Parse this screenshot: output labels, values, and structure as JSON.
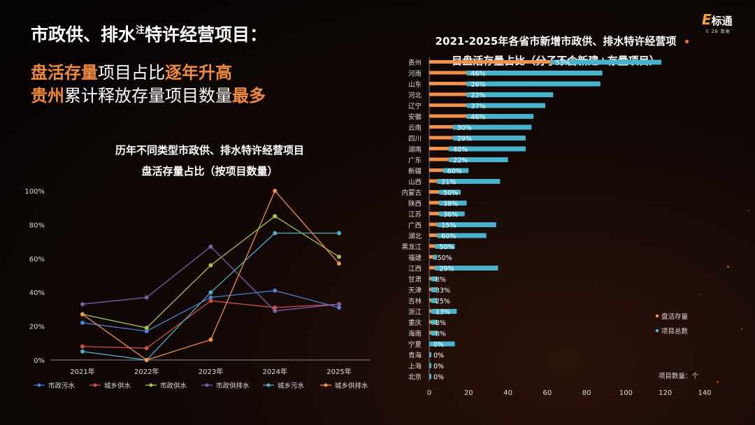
{
  "header": {
    "title": "市政供、排水",
    "title_sup": "注",
    "title_tail": "特许经营项目：",
    "line1_hl1": "盘活存量",
    "line1_plain": "项目占比",
    "line1_hl2": "逐年升高",
    "line2_hl1": "贵州",
    "line2_plain": "累计释放存量项目数量",
    "line2_hl2": "最多"
  },
  "logo": {
    "e": "E",
    "w": "标通",
    "small": "E ZB 数据"
  },
  "chart_data": [
    {
      "type": "line",
      "title": "历年不同类型市政供、排水特许经营项目",
      "subtitle": "盘活存量占比（按项目数量）",
      "x": [
        "2021年",
        "2022年",
        "2023年",
        "2024年",
        "2025年"
      ],
      "ylim": [
        0,
        100
      ],
      "yticks": [
        "0%",
        "20%",
        "40%",
        "60%",
        "80%",
        "100%"
      ],
      "grid": false,
      "legend": "bottom",
      "series": [
        {
          "name": "市政污水",
          "color": "#4f7fd6",
          "values": [
            22,
            17,
            37,
            41,
            31
          ]
        },
        {
          "name": "城乡供水",
          "color": "#c8504a",
          "values": [
            8,
            7,
            35,
            31,
            33
          ]
        },
        {
          "name": "市政供水",
          "color": "#a8c44a",
          "values": [
            27,
            19,
            56,
            85,
            61
          ]
        },
        {
          "name": "市政供排水",
          "color": "#7c5fa8",
          "values": [
            33,
            37,
            67,
            29,
            33
          ]
        },
        {
          "name": "城乡污水",
          "color": "#4fb0c8",
          "values": [
            5,
            0,
            40,
            75,
            75
          ]
        },
        {
          "name": "城乡供排水",
          "color": "#f0924a",
          "values": [
            27,
            0,
            12,
            100,
            57
          ]
        }
      ]
    },
    {
      "type": "bar",
      "orientation": "horizontal",
      "title": "2021-2025年各省市新增市政供、排水特许经营项",
      "subtitle": "目盘活存量占比（分子不含新建+存量项目）",
      "xlim": [
        0,
        140
      ],
      "xticks": [
        "0",
        "20",
        "40",
        "60",
        "80",
        "100",
        "120",
        "140"
      ],
      "unit_label": "项目数量：个",
      "legend": "right",
      "categories": [
        "贵州",
        "河南",
        "山东",
        "河北",
        "辽宁",
        "安徽",
        "云南",
        "四川",
        "湖南",
        "广东",
        "新疆",
        "山西",
        "内蒙古",
        "陕西",
        "江苏",
        "广西",
        "湖北",
        "黑龙江",
        "福建",
        "江西",
        "甘肃",
        "天津",
        "吉林",
        "浙江",
        "重庆",
        "海南",
        "宁夏",
        "青海",
        "上海",
        "北京"
      ],
      "series": [
        {
          "name": "盘活存量",
          "color": "#f0924a",
          "values": [
            62,
            19,
            19,
            19,
            19,
            19,
            12,
            12,
            10,
            10,
            7,
            4,
            5,
            5,
            5,
            4,
            4,
            3,
            2,
            3,
            1,
            1,
            1,
            1,
            1,
            1,
            0,
            0,
            0,
            0
          ]
        },
        {
          "name": "项目总数",
          "color": "#49b3cc",
          "values": [
            118,
            88,
            87,
            63,
            59,
            53,
            52,
            49,
            49,
            40,
            20,
            36,
            16,
            19,
            18,
            34,
            29,
            13,
            4,
            35,
            4,
            4,
            4,
            14,
            4,
            4,
            13,
            1,
            1,
            1
          ]
        }
      ],
      "labels": [
        "53%",
        "46%",
        "26%",
        "22%",
        "37%",
        "46%",
        "30%",
        "29%",
        "40%",
        "22%",
        "60%",
        "21%",
        "50%",
        "38%",
        "36%",
        "15%",
        "60%",
        "50%",
        "50%",
        "29%",
        "8%",
        "33%",
        "25%",
        "13%",
        "8%",
        "8%",
        "0%",
        "0%",
        "0%",
        "0%"
      ]
    }
  ]
}
